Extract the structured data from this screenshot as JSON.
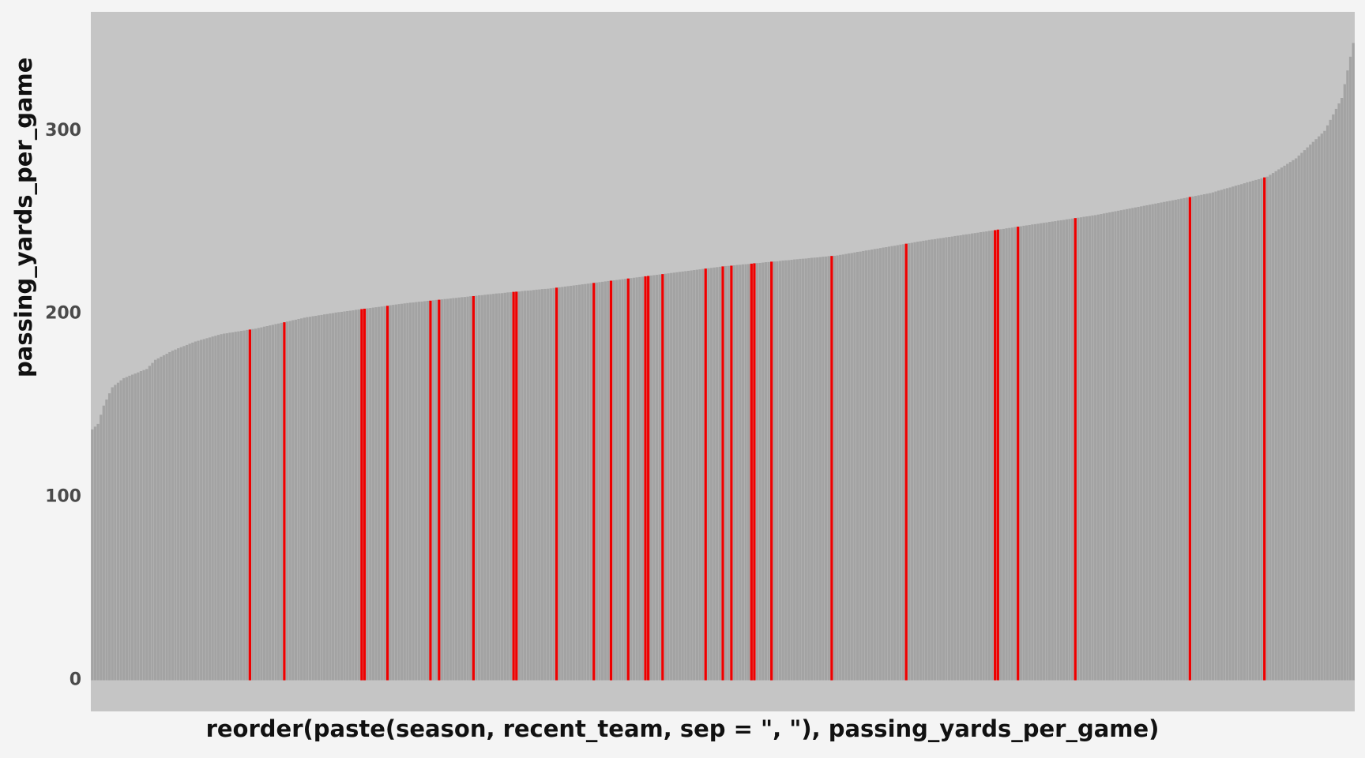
{
  "colors": {
    "page_background": "#f4f4f4",
    "panel_background": "#c5c5c5",
    "bar_default": "#a3a3a3",
    "bar_highlight": "#ee0000"
  },
  "chart_data": {
    "type": "bar",
    "title": "",
    "xlabel": "reorder(paste(season, recent_team, sep = \", \"), passing_yards_per_game)",
    "ylabel": "passing_yards_per_game",
    "ylim": [
      -17,
      365
    ],
    "yticks": [
      0,
      100,
      200,
      300
    ],
    "ytick_labels": [
      "0",
      "100",
      "200",
      "300"
    ],
    "grid": false,
    "legend": "none",
    "x_tick_labels_shown": false,
    "bar_count": 441,
    "sorted_ascending": true,
    "value_anchors": [
      [
        0,
        137
      ],
      [
        2,
        140
      ],
      [
        4,
        150
      ],
      [
        7,
        160
      ],
      [
        11,
        165
      ],
      [
        19,
        170
      ],
      [
        22,
        175
      ],
      [
        28,
        180
      ],
      [
        36,
        185
      ],
      [
        45,
        189
      ],
      [
        57,
        192
      ],
      [
        74,
        198
      ],
      [
        86,
        201
      ],
      [
        110,
        206
      ],
      [
        140,
        211
      ],
      [
        160,
        214
      ],
      [
        185,
        219
      ],
      [
        220,
        226
      ],
      [
        260,
        232
      ],
      [
        290,
        240
      ],
      [
        320,
        247
      ],
      [
        350,
        254
      ],
      [
        370,
        260
      ],
      [
        390,
        266
      ],
      [
        410,
        275
      ],
      [
        420,
        285
      ],
      [
        430,
        300
      ],
      [
        436,
        318
      ],
      [
        440,
        348
      ]
    ],
    "highlighted_bar_indices": [
      55,
      67,
      94,
      95,
      103,
      118,
      121,
      133,
      147,
      148,
      162,
      175,
      181,
      187,
      193,
      194,
      199,
      214,
      220,
      223,
      230,
      231,
      237,
      258,
      284,
      315,
      316,
      323,
      343,
      383,
      409
    ]
  }
}
